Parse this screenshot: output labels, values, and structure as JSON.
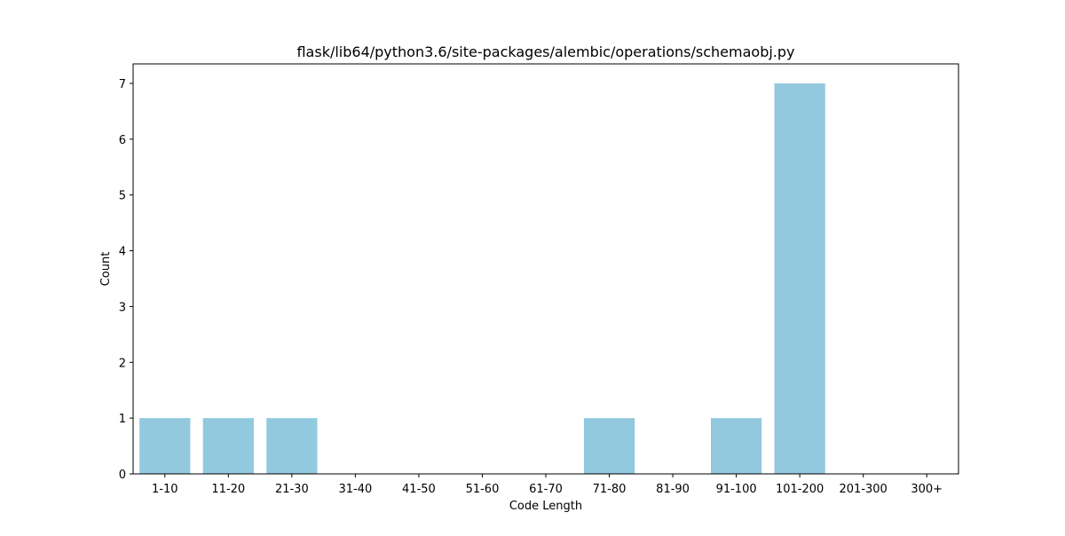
{
  "chart_data": {
    "type": "bar",
    "title": "flask/lib64/python3.6/site-packages/alembic/operations/schemaobj.py",
    "xlabel": "Code Length",
    "ylabel": "Count",
    "categories": [
      "1-10",
      "11-20",
      "21-30",
      "31-40",
      "41-50",
      "51-60",
      "61-70",
      "71-80",
      "81-90",
      "91-100",
      "101-200",
      "201-300",
      "300+"
    ],
    "values": [
      1,
      1,
      1,
      0,
      0,
      0,
      0,
      1,
      0,
      1,
      7,
      0,
      0
    ],
    "ylim": [
      0,
      7.35
    ],
    "yticks": [
      0,
      1,
      2,
      3,
      4,
      5,
      6,
      7
    ],
    "grid": false,
    "legend": "none",
    "bar_color": "#92c9de",
    "axis_color": "#000000"
  }
}
